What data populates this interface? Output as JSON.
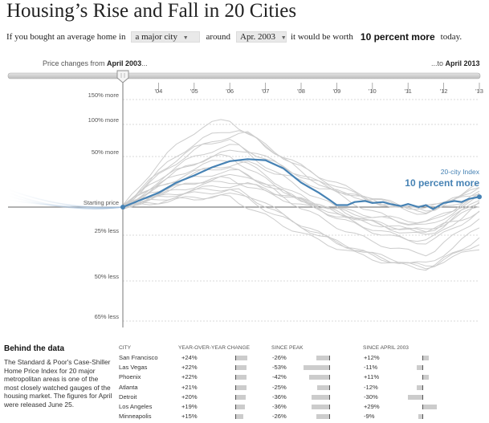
{
  "title": "Housing’s Rise and Fall in 20 Cities",
  "sentence": {
    "part1": "If you bought an average home in",
    "city_select": "a major city",
    "part2": "around",
    "date_select": "Apr. 2003",
    "part3": "it would be worth",
    "worth_value": "10 percent more",
    "part4": "today."
  },
  "slider": {
    "left_prefix": "Price changes from ",
    "left_date": "April 2003",
    "left_suffix": "...",
    "right_prefix": "...to ",
    "right_date": "April 2013"
  },
  "chart_data": {
    "type": "line",
    "x_ticks": [
      "'04",
      "'05",
      "'06",
      "'07",
      "'08",
      "'09",
      "'10",
      "'11",
      "'12",
      "'13"
    ],
    "y_levels": [
      {
        "label": "150% more",
        "value": 150
      },
      {
        "label": "100% more",
        "value": 100
      },
      {
        "label": "50% more",
        "value": 50
      },
      {
        "label": "Starting price",
        "value": 0
      },
      {
        "label": "25% less",
        "value": -25
      },
      {
        "label": "50% less",
        "value": -50
      },
      {
        "label": "65% less",
        "value": -65
      }
    ],
    "x_range": [
      2003.3,
      2013.3
    ],
    "series": [
      {
        "name": "20-city index",
        "label": "20-city Index",
        "end_label": "10 percent more",
        "x": [
          2003.3,
          2003.8,
          2004.3,
          2004.8,
          2005.3,
          2005.8,
          2006.3,
          2006.8,
          2007.3,
          2007.8,
          2008.3,
          2008.8,
          2009.1,
          2009.3,
          2009.6,
          2009.8,
          2010.1,
          2010.3,
          2010.6,
          2010.8,
          2011.1,
          2011.3,
          2011.6,
          2011.8,
          2012.0,
          2012.3,
          2012.6,
          2012.8,
          2013.0,
          2013.3
        ],
        "y": [
          0,
          7,
          14,
          24,
          31,
          39,
          45,
          47,
          46,
          38,
          24,
          14,
          7,
          2,
          2,
          5,
          6,
          4,
          5,
          3,
          1,
          3,
          0,
          2,
          -2,
          4,
          6,
          5,
          8,
          10
        ]
      }
    ],
    "background_series": [
      {
        "peak": 85,
        "end": 12,
        "early": 90
      },
      {
        "peak": 76,
        "end": 22,
        "early": 80
      },
      {
        "peak": 72,
        "end": 11,
        "early": 75
      },
      {
        "peak": 66,
        "end": 8,
        "early": 70
      },
      {
        "peak": 60,
        "end": 15,
        "early": 62
      },
      {
        "peak": 56,
        "end": 20,
        "early": 58
      },
      {
        "peak": 50,
        "end": -5,
        "early": 52
      },
      {
        "peak": 47,
        "end": 3,
        "early": 48
      },
      {
        "peak": 43,
        "end": 18,
        "early": 45
      },
      {
        "peak": 39,
        "end": 1,
        "early": 40
      },
      {
        "peak": 35,
        "end": 6,
        "early": 37
      },
      {
        "peak": 31,
        "end": -10,
        "early": 33
      },
      {
        "peak": 28,
        "end": -5,
        "early": 28
      },
      {
        "peak": 25,
        "end": 10,
        "early": 26
      },
      {
        "peak": 22,
        "end": 14,
        "early": 23
      },
      {
        "peak": 18,
        "end": -20,
        "early": 17
      },
      {
        "peak": 16,
        "end": -40,
        "early": 15
      },
      {
        "peak": 12,
        "end": -35,
        "early": 13
      },
      {
        "peak": 10,
        "end": -30,
        "early": 10
      }
    ]
  },
  "notes": {
    "heading": "Behind the data",
    "body": "The Standard & Poor's Case-Shiller Home Price Index for 20 major metropolitan areas is one of the most closely watched gauges of the housing market. The figures for April were released June 25."
  },
  "table": {
    "headers": [
      "CITY",
      "YEAR-OVER-YEAR CHANGE",
      "SINCE PEAK",
      "SINCE APRIL 2003"
    ],
    "rows": [
      {
        "city": "San Francisco",
        "yoy": "+24%",
        "yoy_v": 24,
        "peak": "-26%",
        "peak_v": -26,
        "since": "+12%",
        "since_v": 12
      },
      {
        "city": "Las Vegas",
        "yoy": "+22%",
        "yoy_v": 22,
        "peak": "-53%",
        "peak_v": -53,
        "since": "-11%",
        "since_v": -11
      },
      {
        "city": "Phoenix",
        "yoy": "+22%",
        "yoy_v": 22,
        "peak": "-42%",
        "peak_v": -42,
        "since": "+11%",
        "since_v": 11
      },
      {
        "city": "Atlanta",
        "yoy": "+21%",
        "yoy_v": 21,
        "peak": "-25%",
        "peak_v": -25,
        "since": "-12%",
        "since_v": -12
      },
      {
        "city": "Detroit",
        "yoy": "+20%",
        "yoy_v": 20,
        "peak": "-36%",
        "peak_v": -36,
        "since": "-30%",
        "since_v": -30
      },
      {
        "city": "Los Angeles",
        "yoy": "+19%",
        "yoy_v": 19,
        "peak": "-36%",
        "peak_v": -36,
        "since": "+29%",
        "since_v": 29
      },
      {
        "city": "Minneapolis",
        "yoy": "+15%",
        "yoy_v": 15,
        "peak": "-26%",
        "peak_v": -26,
        "since": "-9%",
        "since_v": -9
      }
    ]
  },
  "colors": {
    "accent": "#4682b4",
    "context_line": "#cccccc",
    "grid": "#cccccc",
    "bar": "#cccccc"
  }
}
